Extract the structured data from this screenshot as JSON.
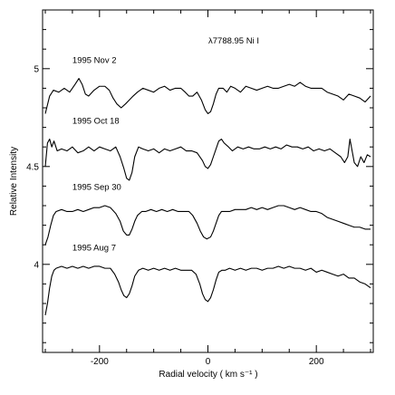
{
  "chart_data": {
    "type": "line",
    "title": "λ7788.95 Ni I",
    "xlabel": "Radial velocity  ( km s⁻¹ )",
    "ylabel": "Relative Intensity",
    "xlim": [
      -305,
      305
    ],
    "ylim": [
      3.55,
      5.3
    ],
    "x_ticks": [
      -200,
      0,
      200
    ],
    "y_ticks": [
      4,
      4.5,
      5
    ],
    "grid": false,
    "series": [
      {
        "name": "1995 Nov 2",
        "x": [
          -300,
          -292,
          -285,
          -275,
          -265,
          -255,
          -245,
          -238,
          -232,
          -226,
          -220,
          -210,
          -200,
          -190,
          -182,
          -175,
          -168,
          -160,
          -152,
          -145,
          -138,
          -130,
          -120,
          -110,
          -100,
          -90,
          -80,
          -70,
          -60,
          -50,
          -42,
          -35,
          -28,
          -20,
          -12,
          -5,
          0,
          5,
          10,
          15,
          20,
          28,
          35,
          42,
          50,
          60,
          70,
          80,
          90,
          100,
          110,
          120,
          130,
          140,
          150,
          160,
          170,
          180,
          190,
          200,
          210,
          220,
          230,
          240,
          250,
          260,
          270,
          280,
          290,
          300
        ],
        "y": [
          4.77,
          4.86,
          4.89,
          4.88,
          4.9,
          4.88,
          4.92,
          4.95,
          4.92,
          4.87,
          4.86,
          4.89,
          4.91,
          4.91,
          4.89,
          4.85,
          4.82,
          4.8,
          4.82,
          4.84,
          4.86,
          4.88,
          4.9,
          4.89,
          4.88,
          4.9,
          4.91,
          4.89,
          4.9,
          4.9,
          4.88,
          4.86,
          4.86,
          4.88,
          4.84,
          4.79,
          4.77,
          4.78,
          4.82,
          4.87,
          4.9,
          4.9,
          4.88,
          4.91,
          4.9,
          4.88,
          4.91,
          4.9,
          4.89,
          4.9,
          4.91,
          4.9,
          4.9,
          4.91,
          4.92,
          4.91,
          4.93,
          4.91,
          4.9,
          4.9,
          4.9,
          4.88,
          4.87,
          4.86,
          4.84,
          4.87,
          4.86,
          4.85,
          4.83,
          4.86
        ]
      },
      {
        "name": "1995 Oct 18",
        "x": [
          -300,
          -296,
          -292,
          -288,
          -284,
          -278,
          -270,
          -260,
          -250,
          -240,
          -230,
          -220,
          -210,
          -200,
          -190,
          -180,
          -170,
          -162,
          -155,
          -150,
          -145,
          -140,
          -135,
          -128,
          -120,
          -110,
          -100,
          -90,
          -80,
          -70,
          -60,
          -50,
          -40,
          -30,
          -20,
          -10,
          -5,
          0,
          5,
          10,
          15,
          20,
          25,
          30,
          38,
          45,
          55,
          65,
          75,
          85,
          95,
          105,
          115,
          125,
          135,
          145,
          155,
          165,
          175,
          185,
          195,
          205,
          215,
          225,
          235,
          245,
          252,
          258,
          262,
          266,
          270,
          276,
          282,
          288,
          294,
          300
        ],
        "y": [
          4.5,
          4.62,
          4.64,
          4.6,
          4.63,
          4.58,
          4.59,
          4.58,
          4.6,
          4.57,
          4.58,
          4.6,
          4.58,
          4.6,
          4.59,
          4.58,
          4.6,
          4.55,
          4.49,
          4.44,
          4.43,
          4.47,
          4.55,
          4.6,
          4.59,
          4.58,
          4.59,
          4.57,
          4.59,
          4.58,
          4.59,
          4.6,
          4.58,
          4.58,
          4.57,
          4.53,
          4.5,
          4.49,
          4.51,
          4.55,
          4.59,
          4.63,
          4.64,
          4.62,
          4.6,
          4.58,
          4.6,
          4.59,
          4.6,
          4.59,
          4.59,
          4.6,
          4.59,
          4.6,
          4.59,
          4.61,
          4.6,
          4.6,
          4.59,
          4.6,
          4.58,
          4.59,
          4.58,
          4.59,
          4.57,
          4.55,
          4.52,
          4.55,
          4.64,
          4.58,
          4.52,
          4.5,
          4.55,
          4.52,
          4.56,
          4.55
        ]
      },
      {
        "name": "1995 Sep 30",
        "x": [
          -300,
          -295,
          -290,
          -285,
          -280,
          -270,
          -260,
          -250,
          -240,
          -230,
          -220,
          -210,
          -200,
          -190,
          -180,
          -170,
          -162,
          -156,
          -150,
          -145,
          -140,
          -135,
          -130,
          -122,
          -115,
          -105,
          -95,
          -85,
          -75,
          -65,
          -55,
          -45,
          -35,
          -28,
          -20,
          -14,
          -8,
          -2,
          5,
          10,
          15,
          20,
          25,
          32,
          40,
          50,
          60,
          70,
          80,
          90,
          100,
          110,
          120,
          130,
          140,
          150,
          160,
          170,
          180,
          190,
          200,
          210,
          220,
          230,
          240,
          250,
          260,
          270,
          280,
          290,
          300
        ],
        "y": [
          4.1,
          4.14,
          4.2,
          4.25,
          4.27,
          4.28,
          4.27,
          4.27,
          4.28,
          4.27,
          4.28,
          4.29,
          4.29,
          4.3,
          4.29,
          4.26,
          4.22,
          4.17,
          4.15,
          4.15,
          4.18,
          4.22,
          4.25,
          4.27,
          4.27,
          4.28,
          4.27,
          4.28,
          4.27,
          4.28,
          4.27,
          4.27,
          4.27,
          4.25,
          4.21,
          4.17,
          4.14,
          4.13,
          4.14,
          4.17,
          4.21,
          4.25,
          4.27,
          4.27,
          4.27,
          4.28,
          4.28,
          4.28,
          4.29,
          4.28,
          4.29,
          4.28,
          4.29,
          4.3,
          4.3,
          4.29,
          4.28,
          4.29,
          4.28,
          4.27,
          4.27,
          4.26,
          4.24,
          4.23,
          4.22,
          4.21,
          4.2,
          4.19,
          4.19,
          4.18,
          4.18
        ]
      },
      {
        "name": "1995 Aug 7",
        "x": [
          -300,
          -296,
          -292,
          -288,
          -284,
          -280,
          -270,
          -260,
          -250,
          -240,
          -230,
          -220,
          -210,
          -200,
          -190,
          -180,
          -172,
          -165,
          -160,
          -155,
          -150,
          -145,
          -140,
          -135,
          -128,
          -120,
          -110,
          -100,
          -90,
          -80,
          -70,
          -60,
          -50,
          -40,
          -30,
          -22,
          -15,
          -10,
          -5,
          0,
          5,
          10,
          15,
          20,
          26,
          32,
          40,
          50,
          60,
          70,
          80,
          90,
          100,
          110,
          120,
          130,
          140,
          150,
          160,
          170,
          180,
          190,
          200,
          210,
          220,
          230,
          240,
          250,
          260,
          270,
          280,
          290,
          300
        ],
        "y": [
          3.74,
          3.8,
          3.88,
          3.94,
          3.97,
          3.98,
          3.99,
          3.98,
          3.99,
          3.98,
          3.99,
          3.98,
          3.99,
          3.99,
          3.98,
          3.98,
          3.95,
          3.91,
          3.87,
          3.84,
          3.83,
          3.85,
          3.89,
          3.94,
          3.97,
          3.98,
          3.97,
          3.98,
          3.97,
          3.98,
          3.97,
          3.98,
          3.97,
          3.97,
          3.97,
          3.95,
          3.9,
          3.85,
          3.82,
          3.81,
          3.83,
          3.87,
          3.92,
          3.96,
          3.97,
          3.97,
          3.98,
          3.97,
          3.98,
          3.97,
          3.98,
          3.98,
          3.97,
          3.98,
          3.98,
          3.99,
          3.98,
          3.99,
          3.98,
          3.98,
          3.97,
          3.98,
          3.96,
          3.97,
          3.96,
          3.95,
          3.94,
          3.95,
          3.93,
          3.93,
          3.91,
          3.9,
          3.88
        ]
      }
    ],
    "annotations": [
      {
        "text": "1995 Nov 2",
        "x": -250,
        "y": 5.03
      },
      {
        "text": "1995 Oct 18",
        "x": -250,
        "y": 4.72
      },
      {
        "text": "1995 Sep 30",
        "x": -250,
        "y": 4.38
      },
      {
        "text": "1995 Aug 7",
        "x": -250,
        "y": 4.07
      }
    ]
  }
}
